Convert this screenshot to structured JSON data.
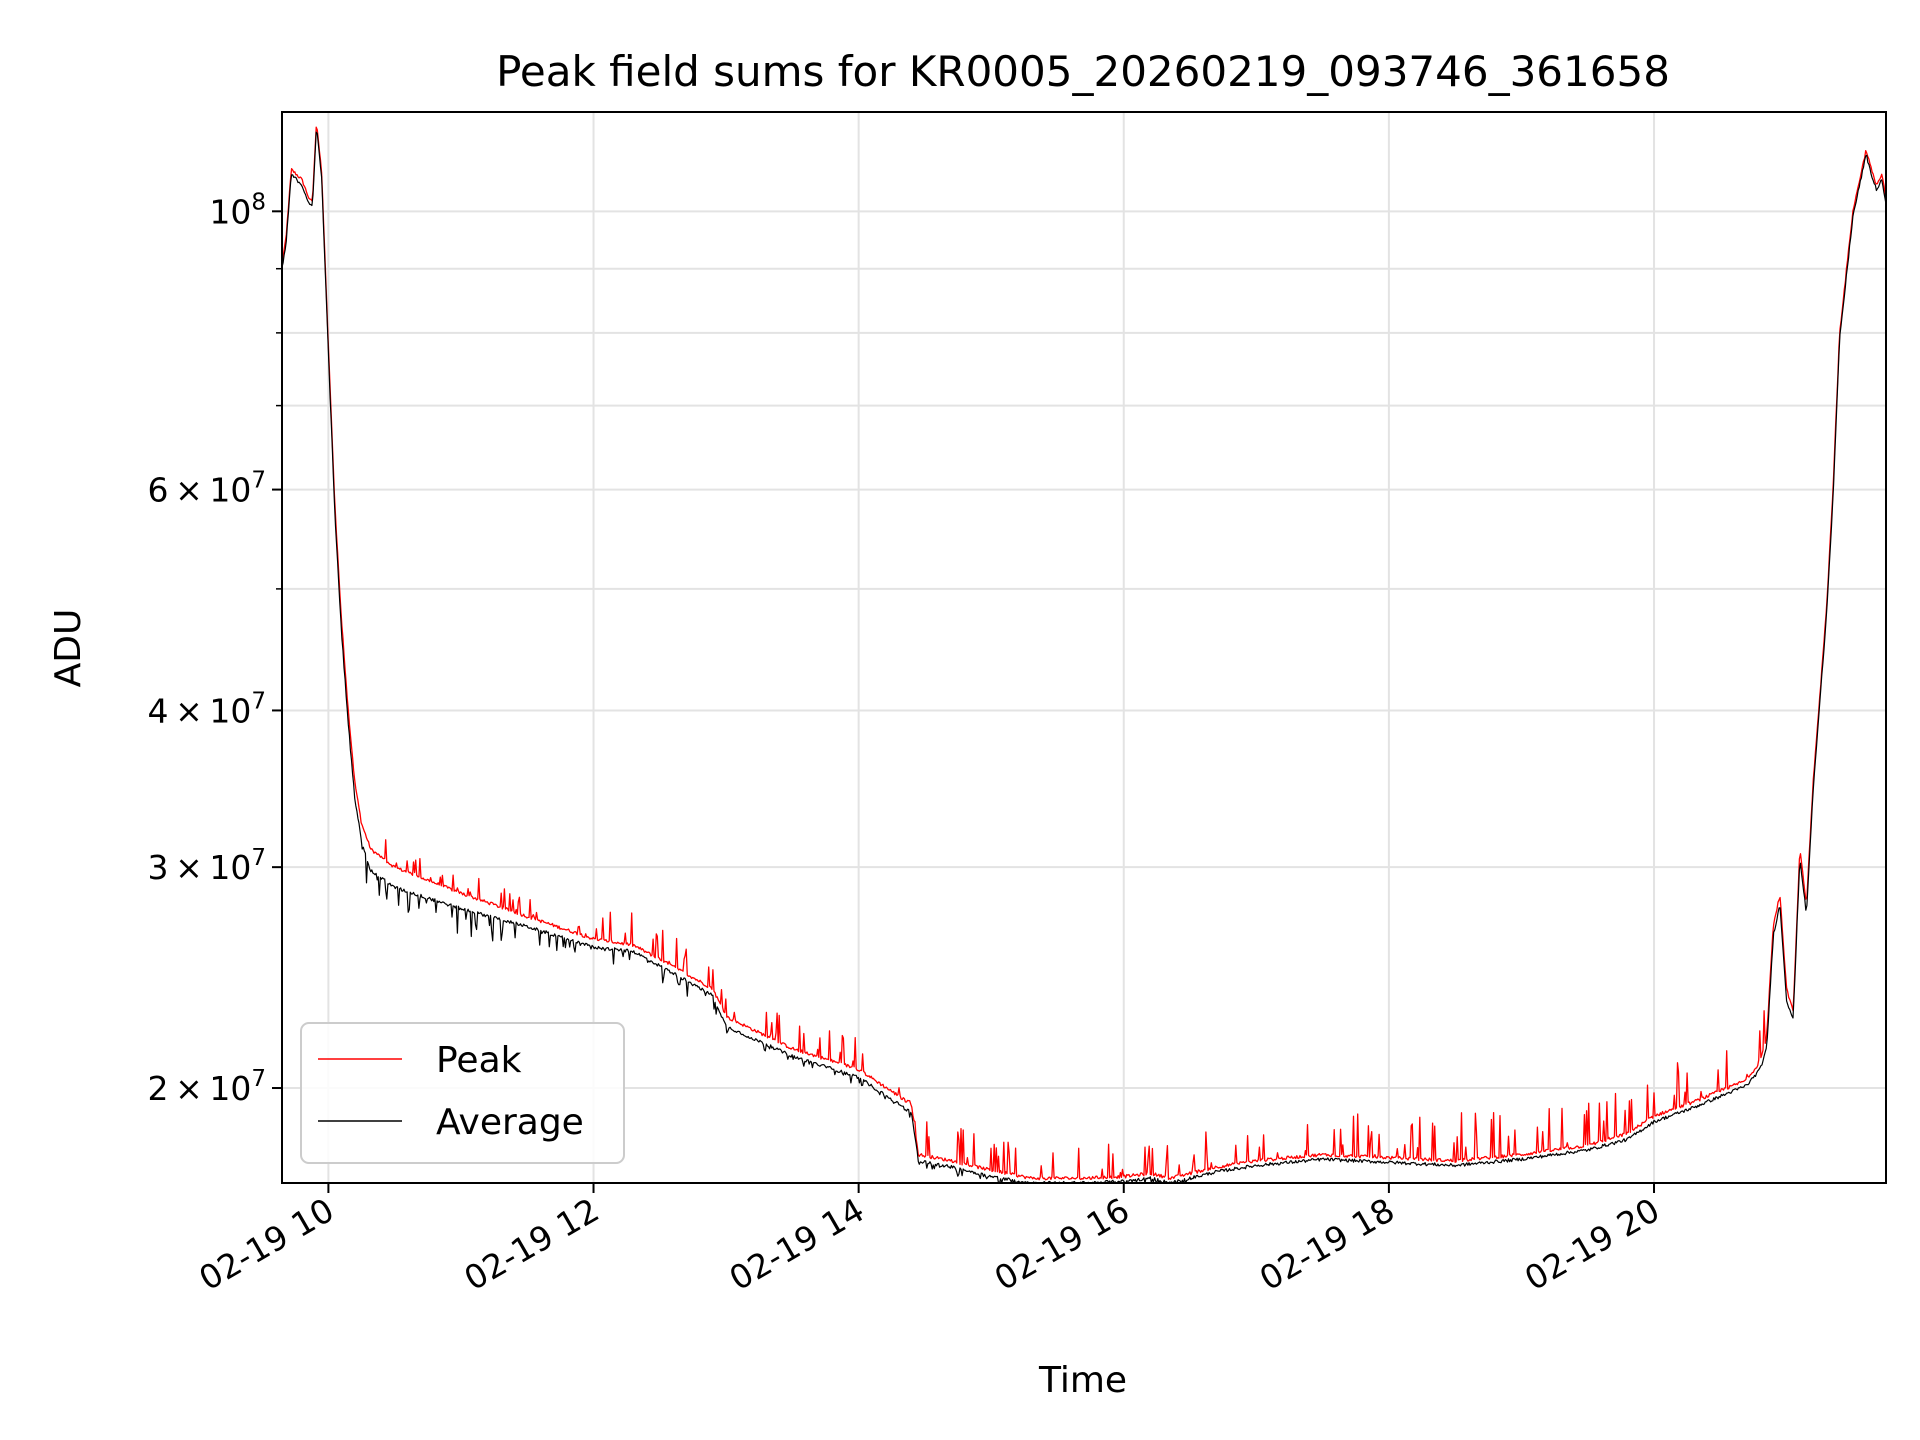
{
  "chart_data": {
    "type": "line",
    "title": "Peak field sums for KR0005_20260219_093746_361658",
    "xlabel": "Time",
    "ylabel": "ADU",
    "yscale": "log",
    "grid": true,
    "xlim_hours": [
      9.65,
      21.75
    ],
    "ylim": [
      16800000,
      120000000
    ],
    "x_ticks": [
      {
        "value": 10,
        "label": "02-19 10"
      },
      {
        "value": 12,
        "label": "02-19 12"
      },
      {
        "value": 14,
        "label": "02-19 14"
      },
      {
        "value": 16,
        "label": "02-19 16"
      },
      {
        "value": 18,
        "label": "02-19 18"
      },
      {
        "value": 20,
        "label": "02-19 20"
      }
    ],
    "y_ticks": [
      {
        "value": 20000000,
        "mantissa": "2",
        "exponent": "7"
      },
      {
        "value": 30000000,
        "mantissa": "3",
        "exponent": "7"
      },
      {
        "value": 40000000,
        "mantissa": "4",
        "exponent": "7"
      },
      {
        "value": 60000000,
        "mantissa": "6",
        "exponent": "7"
      },
      {
        "value": 100000000,
        "mantissa": "",
        "exponent": "8"
      }
    ],
    "y_minor_ticks": [
      50000000,
      70000000,
      80000000,
      90000000
    ],
    "legend": {
      "location": "lower-left",
      "entries": [
        "Peak",
        "Average"
      ]
    },
    "series": [
      {
        "name": "Peak",
        "color": "#ff0000",
        "spike_amplitude": [
          {
            "from": 10.4,
            "to": 12.0,
            "value": 0.04
          },
          {
            "from": 12.0,
            "to": 14.5,
            "value": 0.06
          },
          {
            "from": 14.5,
            "to": 17.0,
            "value": 0.07
          },
          {
            "from": 17.0,
            "to": 20.85,
            "value": 0.09
          }
        ],
        "anchors": [
          [
            9.65,
            91000000
          ],
          [
            9.68,
            95000000
          ],
          [
            9.72,
            108000000
          ],
          [
            9.8,
            106000000
          ],
          [
            9.86,
            102000000
          ],
          [
            9.88,
            102000000
          ],
          [
            9.91,
            118000000
          ],
          [
            9.95,
            107000000
          ],
          [
            10.0,
            78000000
          ],
          [
            10.05,
            58000000
          ],
          [
            10.1,
            47000000
          ],
          [
            10.15,
            40000000
          ],
          [
            10.2,
            35000000
          ],
          [
            10.25,
            32500000
          ],
          [
            10.32,
            31000000
          ],
          [
            10.5,
            30000000
          ],
          [
            11.0,
            28600000
          ],
          [
            11.5,
            27400000
          ],
          [
            12.0,
            26300000
          ],
          [
            12.3,
            26000000
          ],
          [
            12.6,
            25000000
          ],
          [
            12.9,
            24000000
          ],
          [
            13.0,
            22800000
          ],
          [
            13.5,
            21500000
          ],
          [
            14.0,
            20700000
          ],
          [
            14.4,
            19400000
          ],
          [
            14.45,
            17700000
          ],
          [
            14.7,
            17500000
          ],
          [
            15.0,
            17200000
          ],
          [
            15.3,
            16950000
          ],
          [
            15.7,
            16950000
          ],
          [
            16.0,
            17000000
          ],
          [
            16.2,
            17100000
          ],
          [
            16.35,
            16950000
          ],
          [
            16.5,
            17100000
          ],
          [
            16.7,
            17300000
          ],
          [
            17.0,
            17500000
          ],
          [
            17.5,
            17700000
          ],
          [
            18.0,
            17600000
          ],
          [
            18.5,
            17500000
          ],
          [
            19.0,
            17700000
          ],
          [
            19.5,
            18000000
          ],
          [
            19.8,
            18400000
          ],
          [
            20.0,
            19000000
          ],
          [
            20.3,
            19500000
          ],
          [
            20.7,
            20300000
          ],
          [
            20.8,
            21000000
          ],
          [
            20.85,
            22000000
          ],
          [
            20.9,
            27000000
          ],
          [
            20.95,
            28500000
          ],
          [
            21.0,
            24000000
          ],
          [
            21.05,
            23000000
          ],
          [
            21.1,
            31000000
          ],
          [
            21.15,
            28000000
          ],
          [
            21.2,
            35000000
          ],
          [
            21.3,
            48000000
          ],
          [
            21.35,
            60000000
          ],
          [
            21.4,
            80000000
          ],
          [
            21.5,
            100000000
          ],
          [
            21.6,
            112000000
          ],
          [
            21.65,
            107000000
          ],
          [
            21.68,
            105000000
          ],
          [
            21.72,
            107000000
          ],
          [
            21.75,
            102000000
          ]
        ]
      },
      {
        "name": "Average",
        "color": "#000000",
        "dip_amplitude": [
          {
            "from": 10.25,
            "to": 11.5,
            "value": 0.05
          },
          {
            "from": 11.5,
            "to": 13.0,
            "value": 0.03
          },
          {
            "from": 13.0,
            "to": 16.5,
            "value": 0.015
          }
        ],
        "anchors": [
          [
            9.65,
            90000000
          ],
          [
            9.68,
            94000000
          ],
          [
            9.72,
            107000000
          ],
          [
            9.8,
            105000000
          ],
          [
            9.86,
            101000000
          ],
          [
            9.88,
            101000000
          ],
          [
            9.91,
            117000000
          ],
          [
            9.95,
            106000000
          ],
          [
            10.0,
            77000000
          ],
          [
            10.05,
            57000000
          ],
          [
            10.1,
            46000000
          ],
          [
            10.15,
            39000000
          ],
          [
            10.2,
            34000000
          ],
          [
            10.25,
            31500000
          ],
          [
            10.32,
            29800000
          ],
          [
            10.5,
            28900000
          ],
          [
            11.0,
            27800000
          ],
          [
            11.5,
            26900000
          ],
          [
            12.0,
            25900000
          ],
          [
            12.3,
            25700000
          ],
          [
            12.6,
            24700000
          ],
          [
            12.9,
            23700000
          ],
          [
            13.0,
            22400000
          ],
          [
            13.5,
            21200000
          ],
          [
            14.0,
            20400000
          ],
          [
            14.4,
            19100000
          ],
          [
            14.45,
            17500000
          ],
          [
            14.7,
            17300000
          ],
          [
            15.0,
            17000000
          ],
          [
            15.3,
            16800000
          ],
          [
            15.7,
            16800000
          ],
          [
            16.0,
            16850000
          ],
          [
            16.2,
            16950000
          ],
          [
            16.35,
            16800000
          ],
          [
            16.5,
            16950000
          ],
          [
            16.7,
            17150000
          ],
          [
            17.0,
            17350000
          ],
          [
            17.5,
            17550000
          ],
          [
            18.0,
            17450000
          ],
          [
            18.5,
            17350000
          ],
          [
            19.0,
            17550000
          ],
          [
            19.5,
            17850000
          ],
          [
            19.8,
            18200000
          ],
          [
            20.0,
            18800000
          ],
          [
            20.3,
            19300000
          ],
          [
            20.7,
            20100000
          ],
          [
            20.8,
            20700000
          ],
          [
            20.85,
            21500000
          ],
          [
            20.9,
            26500000
          ],
          [
            20.95,
            28000000
          ],
          [
            21.0,
            23500000
          ],
          [
            21.05,
            22700000
          ],
          [
            21.1,
            30500000
          ],
          [
            21.15,
            27500000
          ],
          [
            21.2,
            34500000
          ],
          [
            21.3,
            47500000
          ],
          [
            21.35,
            59000000
          ],
          [
            21.4,
            79000000
          ],
          [
            21.5,
            99000000
          ],
          [
            21.6,
            111000000
          ],
          [
            21.65,
            106000000
          ],
          [
            21.68,
            104000000
          ],
          [
            21.72,
            106000000
          ],
          [
            21.75,
            101000000
          ]
        ]
      }
    ]
  }
}
